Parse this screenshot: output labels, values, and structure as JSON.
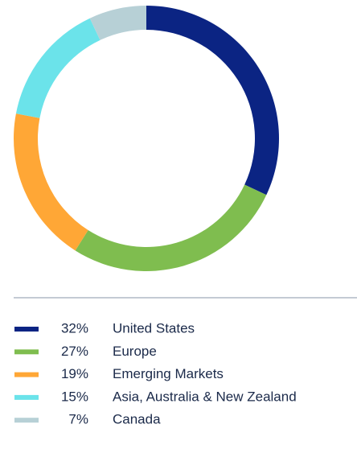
{
  "chart_data": {
    "type": "donut",
    "categories": [
      "United States",
      "Europe",
      "Emerging Markets",
      "Asia, Australia & New Zealand",
      "Canada"
    ],
    "values": [
      32,
      27,
      19,
      15,
      7
    ],
    "value_labels": [
      "32%",
      "27%",
      "19%",
      "15%",
      "7%"
    ],
    "colors": [
      "#0b2483",
      "#7fbd4f",
      "#ffa736",
      "#6be3ea",
      "#b7d0d6"
    ],
    "legend": "bottom"
  }
}
